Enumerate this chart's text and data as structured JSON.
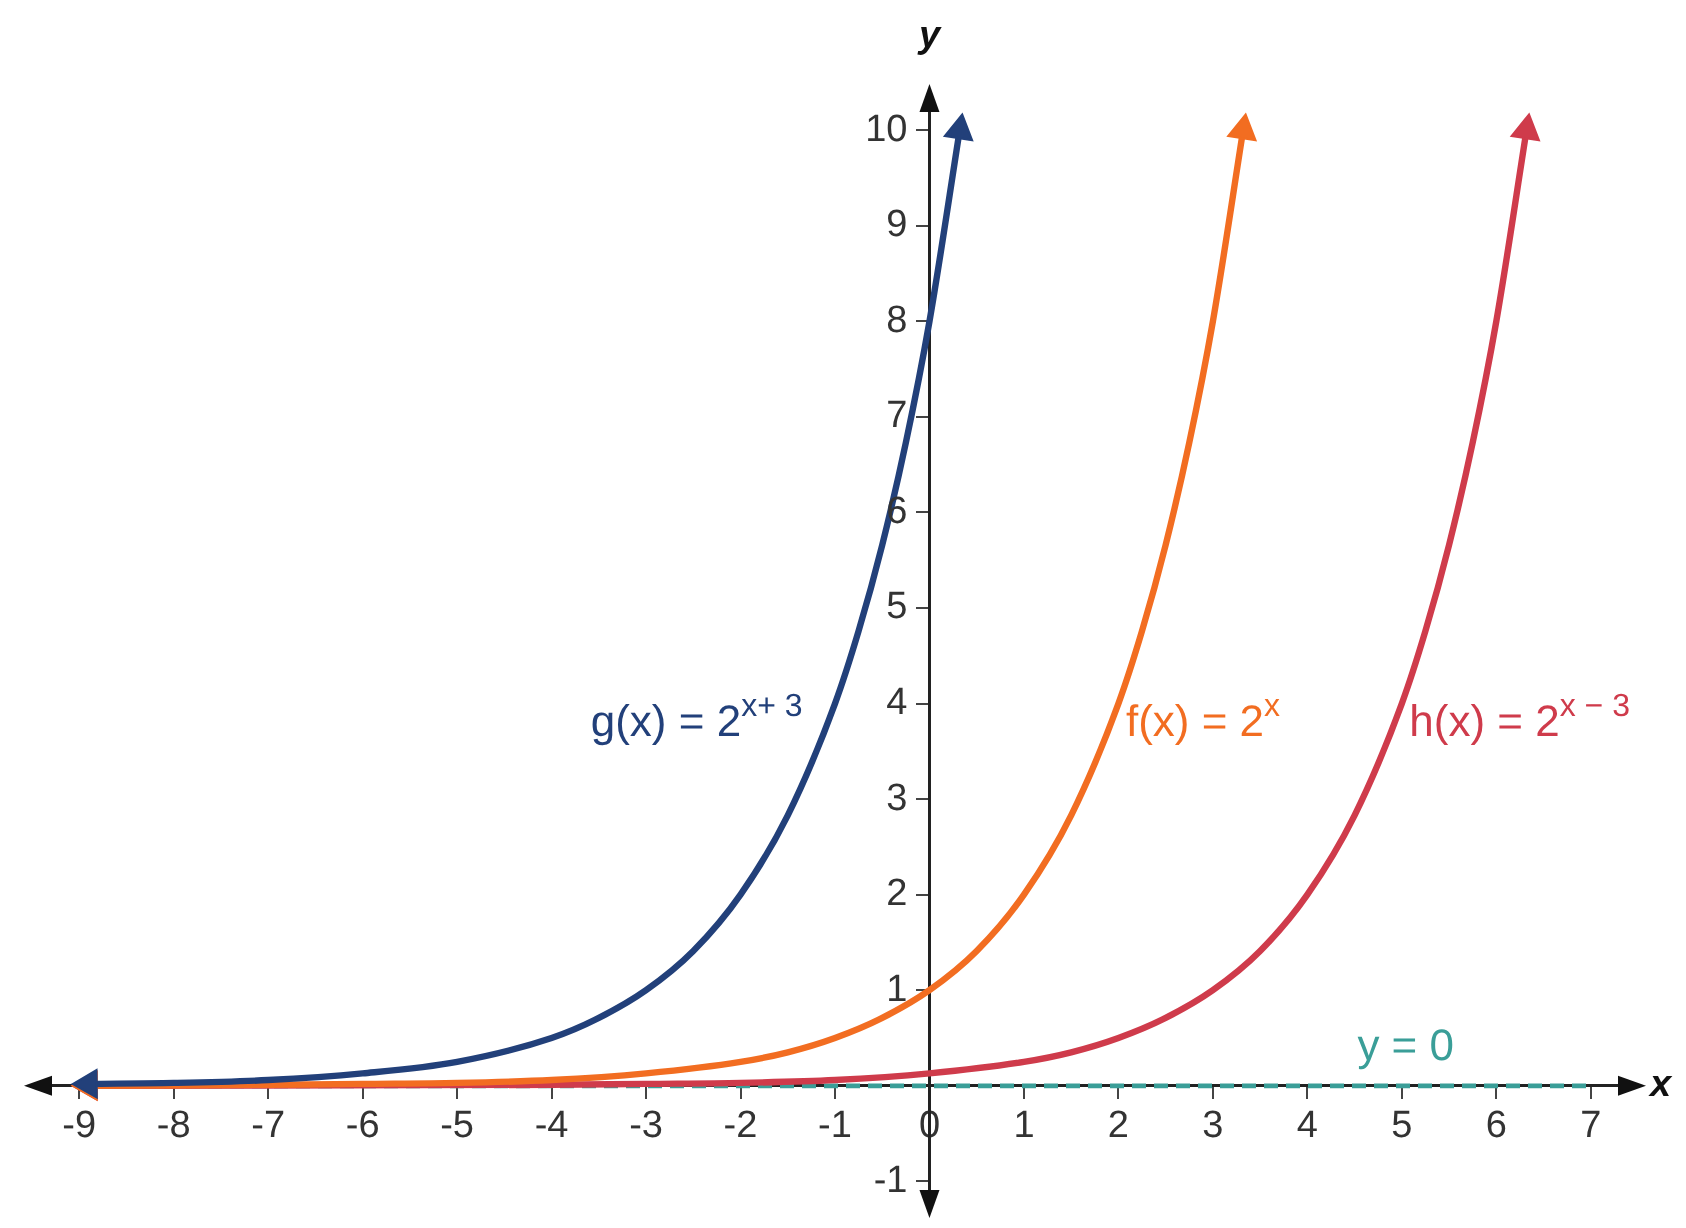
{
  "chart_data": {
    "type": "line",
    "xlabel": "x",
    "ylabel": "y",
    "xlim": [
      -9.5,
      7.5
    ],
    "ylim": [
      -1.3,
      10.4
    ],
    "xticks": [
      -9,
      -8,
      -7,
      -6,
      -5,
      -4,
      -3,
      -2,
      -1,
      0,
      1,
      2,
      3,
      4,
      5,
      6,
      7
    ],
    "yticks": [
      -1,
      1,
      2,
      3,
      4,
      5,
      6,
      7,
      8,
      9,
      10
    ],
    "grid": false,
    "marker": "none",
    "series": [
      {
        "name": "g(x) = 2$^{x+ 3}$",
        "color": "#22407a",
        "x": [
          -8.9,
          -8,
          -7,
          -6,
          -5,
          -4,
          -3.5,
          -3,
          -2.5,
          -2,
          -1.5,
          -1,
          -0.75,
          -0.5,
          -0.25,
          0,
          0.32
        ],
        "values": [
          0.02,
          0.03,
          0.06,
          0.13,
          0.25,
          0.5,
          0.71,
          1,
          1.41,
          2,
          2.83,
          4,
          4.76,
          5.66,
          6.73,
          8,
          10
        ]
      },
      {
        "name": "f(x) = 2$^{x}$",
        "color": "#f26d21",
        "x": [
          -8.9,
          -7,
          -6,
          -5,
          -4,
          -3,
          -2,
          -1.5,
          -1,
          -0.5,
          0,
          0.5,
          1,
          1.5,
          2,
          2.25,
          2.5,
          2.75,
          3,
          3.32
        ],
        "values": [
          0,
          0.01,
          0.02,
          0.03,
          0.06,
          0.13,
          0.25,
          0.35,
          0.5,
          0.71,
          1,
          1.41,
          2,
          2.83,
          4,
          4.76,
          5.66,
          6.73,
          8,
          10
        ]
      },
      {
        "name": "h(x) = 2$^{x − 3}$",
        "color": "#cf3b4b",
        "x": [
          -8.9,
          -4,
          -3,
          -2,
          -1,
          0,
          1,
          1.5,
          2,
          2.5,
          3,
          3.5,
          4,
          4.5,
          5,
          5.25,
          5.5,
          5.75,
          6,
          6.32
        ],
        "values": [
          0,
          0.01,
          0.02,
          0.03,
          0.06,
          0.13,
          0.25,
          0.35,
          0.5,
          0.71,
          1,
          1.41,
          2,
          2.83,
          4,
          4.76,
          5.66,
          6.73,
          8,
          10
        ]
      }
    ],
    "ref_lines": [
      {
        "axis": "y",
        "value": 0,
        "label": "y = 0",
        "color": "#3a9e98",
        "line_style": "dashed"
      }
    ]
  }
}
